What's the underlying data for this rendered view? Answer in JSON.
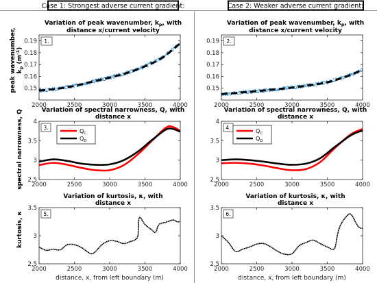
{
  "case_headers": [
    "Case 1: Strongest adverse current gradient:",
    "Case 2: Weaker adverse current gradient:"
  ],
  "row_titles": [
    [
      "Variation of peak wavenumber, k",
      "p",
      ", with",
      "distance x/current velocity"
    ],
    [
      "Variation of spectral narrowness, Q, with",
      "distance x"
    ],
    [
      "Variation of kurtosis, κ, with",
      "distance x"
    ]
  ],
  "ylabels": [
    [
      "peak wavenumber,",
      "k",
      "p",
      " (m",
      "-1",
      ")"
    ],
    [
      "spectral narrowness, Q"
    ],
    [
      "kurtosis, κ"
    ]
  ],
  "xlabel": "distance, x, from left boundary (m)",
  "legend": {
    "qc": [
      "Q",
      "C"
    ],
    "qd": [
      "Q",
      "D"
    ]
  },
  "colors": {
    "qc": "#ff0000",
    "qd": "#000000",
    "scatter": "#3c9bd6",
    "fit": "#000000",
    "kurtosis": "#000000",
    "axis": "#262626",
    "grid_text": "#262626"
  },
  "chart_data": [
    {
      "panel": "1.",
      "type": "scatter",
      "title": "Variation of peak wavenumber, kp, with distance x/current velocity",
      "xlabel": "",
      "ylabel": "peak wavenumber, kp (m-1)",
      "xlim": [
        2000,
        4000
      ],
      "ylim": [
        0.14,
        0.195
      ],
      "xticks": [
        2000,
        2500,
        3000,
        3500,
        4000
      ],
      "yticks": [
        0.15,
        0.16,
        0.17,
        0.18,
        0.19
      ],
      "series": [
        {
          "style": "scatter-fit",
          "x": [
            2000,
            2250,
            2500,
            2750,
            3000,
            3250,
            3500,
            3750,
            4000
          ],
          "y": [
            0.148,
            0.1495,
            0.152,
            0.1555,
            0.159,
            0.163,
            0.1685,
            0.176,
            0.188
          ]
        }
      ]
    },
    {
      "panel": "2.",
      "type": "scatter",
      "title": "Variation of peak wavenumber, kp, with distance x/current velocity",
      "xlabel": "",
      "ylabel": "",
      "xlim": [
        2000,
        4000
      ],
      "ylim": [
        0.14,
        0.195
      ],
      "xticks": [
        2000,
        2500,
        3000,
        3500,
        4000
      ],
      "yticks": [
        0.15,
        0.16,
        0.17,
        0.18,
        0.19
      ],
      "series": [
        {
          "style": "scatter-fit",
          "x": [
            2000,
            2250,
            2500,
            2750,
            3000,
            3250,
            3500,
            3750,
            4000
          ],
          "y": [
            0.145,
            0.1462,
            0.1475,
            0.149,
            0.1505,
            0.1525,
            0.155,
            0.1595,
            0.1655
          ]
        }
      ]
    },
    {
      "panel": "3.",
      "type": "line",
      "title": "Variation of spectral narrowness, Q, with distance x",
      "xlabel": "",
      "ylabel": "spectral narrowness, Q",
      "xlim": [
        2000,
        4000
      ],
      "ylim": [
        2.5,
        4
      ],
      "xticks": [
        2000,
        2500,
        3000,
        3500,
        4000
      ],
      "yticks": [
        2.5,
        3,
        3.5,
        4
      ],
      "series": [
        {
          "name": "QC",
          "x": [
            2000,
            2200,
            2400,
            2600,
            2800,
            3000,
            3200,
            3400,
            3600,
            3800,
            3900,
            4000
          ],
          "y": [
            2.87,
            2.93,
            2.88,
            2.8,
            2.74,
            2.74,
            2.87,
            3.15,
            3.5,
            3.84,
            3.85,
            3.75
          ]
        },
        {
          "name": "QD",
          "x": [
            2000,
            2200,
            2400,
            2600,
            2800,
            3000,
            3200,
            3400,
            3600,
            3800,
            3900,
            4000
          ],
          "y": [
            2.96,
            3.02,
            2.98,
            2.91,
            2.88,
            2.89,
            3.0,
            3.22,
            3.52,
            3.79,
            3.8,
            3.73
          ]
        }
      ]
    },
    {
      "panel": "4.",
      "type": "line",
      "title": "Variation of spectral narrowness, Q, with distance x",
      "xlabel": "",
      "ylabel": "",
      "xlim": [
        2000,
        4000
      ],
      "ylim": [
        2.5,
        4
      ],
      "xticks": [
        2000,
        2500,
        3000,
        3500,
        4000
      ],
      "yticks": [
        2.5,
        3,
        3.5,
        4
      ],
      "series": [
        {
          "name": "QC",
          "x": [
            2000,
            2200,
            2400,
            2600,
            2800,
            3000,
            3200,
            3400,
            3600,
            3800,
            3900,
            4000
          ],
          "y": [
            2.92,
            2.93,
            2.91,
            2.86,
            2.79,
            2.74,
            2.77,
            2.95,
            3.3,
            3.62,
            3.73,
            3.8
          ]
        },
        {
          "name": "QD",
          "x": [
            2000,
            2200,
            2400,
            2600,
            2800,
            3000,
            3200,
            3400,
            3600,
            3800,
            3900,
            4000
          ],
          "y": [
            3.0,
            3.02,
            3.0,
            2.96,
            2.91,
            2.88,
            2.91,
            3.05,
            3.33,
            3.6,
            3.7,
            3.76
          ]
        }
      ]
    },
    {
      "panel": "5.",
      "type": "line",
      "title": "Variation of kurtosis, κ, with distance x",
      "xlabel": "distance, x, from left boundary (m)",
      "ylabel": "kurtosis, κ",
      "xlim": [
        2000,
        4000
      ],
      "ylim": [
        2.5,
        3.5
      ],
      "xticks": [
        2000,
        2500,
        3000,
        3500,
        4000
      ],
      "yticks": [
        2.5,
        3,
        3.5
      ],
      "series": [
        {
          "name": "kurtosis",
          "x": [
            2000,
            2100,
            2200,
            2300,
            2400,
            2500,
            2600,
            2700,
            2750,
            2800,
            2900,
            3000,
            3100,
            3200,
            3300,
            3350,
            3400,
            3420,
            3500,
            3600,
            3650,
            3700,
            3800,
            3900,
            3950,
            4000
          ],
          "y": [
            2.8,
            2.74,
            2.76,
            2.75,
            2.84,
            2.84,
            2.79,
            2.7,
            2.68,
            2.72,
            2.85,
            2.91,
            2.9,
            2.86,
            2.9,
            2.92,
            3.0,
            3.32,
            3.2,
            3.1,
            3.06,
            3.2,
            3.24,
            3.28,
            3.25,
            3.25
          ]
        }
      ]
    },
    {
      "panel": "6.",
      "type": "line",
      "title": "Variation of kurtosis, κ, with distance x",
      "xlabel": "distance, x, from left boundary (m)",
      "ylabel": "",
      "xlim": [
        2000,
        4000
      ],
      "ylim": [
        2.5,
        3.5
      ],
      "xticks": [
        2000,
        2500,
        3000,
        3500,
        4000
      ],
      "yticks": [
        2.5,
        3,
        3.5
      ],
      "series": [
        {
          "name": "kurtosis",
          "x": [
            2000,
            2100,
            2200,
            2300,
            2400,
            2500,
            2600,
            2700,
            2800,
            2900,
            3000,
            3100,
            3200,
            3300,
            3400,
            3500,
            3600,
            3650,
            3700,
            3800,
            3850,
            3900,
            3950,
            4000
          ],
          "y": [
            3.0,
            2.88,
            2.72,
            2.76,
            2.8,
            2.85,
            2.86,
            2.8,
            2.72,
            2.67,
            2.68,
            2.82,
            2.88,
            2.92,
            2.86,
            2.8,
            2.77,
            3.05,
            3.22,
            3.38,
            3.36,
            3.24,
            3.15,
            3.13
          ]
        }
      ]
    }
  ]
}
